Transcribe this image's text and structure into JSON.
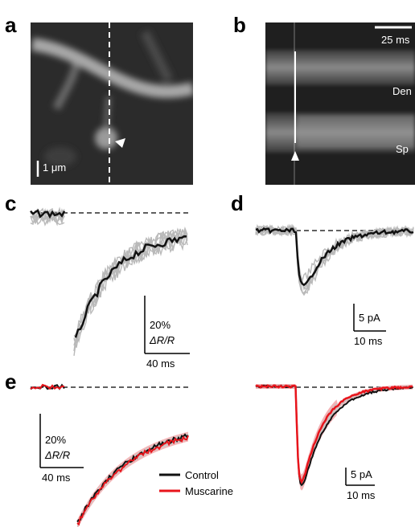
{
  "panels": {
    "a": {
      "label": "a",
      "scale_bar": "1 μm"
    },
    "b": {
      "label": "b",
      "scale_bar": "25 ms",
      "dendrite_label": "Den",
      "spine_label": "Sp"
    },
    "c": {
      "label": "c",
      "scale_y_value": "20%",
      "scale_y_unit": "ΔR/R",
      "scale_x": "40 ms"
    },
    "d": {
      "label": "d",
      "scale_y": "5 pA",
      "scale_x": "10 ms"
    },
    "e": {
      "label": "e",
      "left_scale_y_value": "20%",
      "left_scale_y_unit": "ΔR/R",
      "left_scale_x": "40 ms",
      "right_scale_y": "5 pA",
      "right_scale_x": "10 ms"
    }
  },
  "legend": {
    "items": [
      {
        "label": "Control",
        "color": "#111111"
      },
      {
        "label": "Muscarine",
        "color": "#e8141b"
      }
    ]
  },
  "colors": {
    "mean_trace": "#111111",
    "individual_traces": "#b9b9b9",
    "muscarine_trace": "#e8141b",
    "muscarine_shade": "#f2a5a8"
  }
}
